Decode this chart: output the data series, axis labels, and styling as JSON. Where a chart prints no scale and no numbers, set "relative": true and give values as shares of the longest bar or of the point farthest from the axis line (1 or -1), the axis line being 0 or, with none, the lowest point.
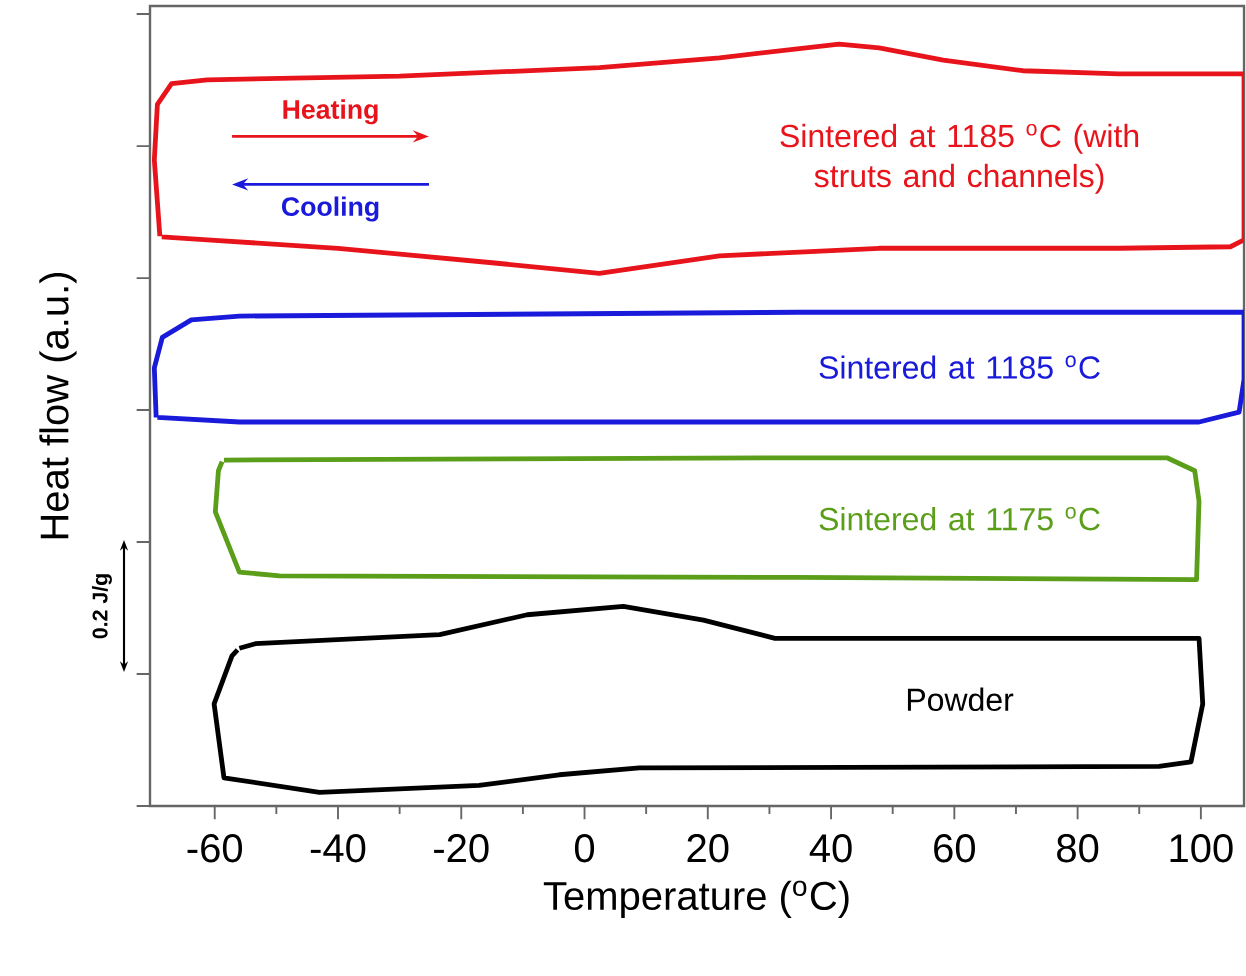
{
  "chart_data": {
    "type": "line",
    "relative": true,
    "xlabel": "Temperature ($^{o}$C)",
    "ylabel": "Heat flow (a.u.)",
    "xlim": [
      -70.5,
      107
    ],
    "xticks": [
      -60,
      -40,
      -20,
      0,
      20,
      40,
      60,
      80,
      100
    ],
    "tick_labels": "x",
    "annotations": [
      "Heating",
      "Cooling",
      "0.2 J/g"
    ],
    "series": [
      {
        "name": "Sintered at 1185 $^{o}$C (with struts and channels)",
        "color": "#e8141c",
        "x": [
          -68.9,
          -69.8,
          -69.3,
          -67.0,
          -61.2,
          -30.0,
          2.4,
          21.9,
          41.3,
          47.8,
          58.2,
          71.1,
          86.7,
          107,
          107,
          104.8,
          86.7,
          47.8,
          21.9,
          2.4,
          -15,
          -40,
          -61.2,
          -68.6
        ],
        "values": [
          0.748,
          0.848,
          0.921,
          0.948,
          0.953,
          0.958,
          0.969,
          0.982,
          1.0,
          0.995,
          0.979,
          0.965,
          0.961,
          0.961,
          0.743,
          0.734,
          0.732,
          0.732,
          0.722,
          0.699,
          0.713,
          0.732,
          0.743,
          0.747
        ]
      },
      {
        "name": "Sintered at 1185 $^{o}$C",
        "color": "#1a1adb",
        "x": [
          -69.5,
          -69.8,
          -68.5,
          -63.8,
          -56.0,
          34.8,
          107,
          107,
          106.2,
          99.7,
          30,
          -56,
          -69.3
        ],
        "values": [
          0.51,
          0.575,
          0.615,
          0.638,
          0.643,
          0.648,
          0.648,
          0.56,
          0.517,
          0.504,
          0.504,
          0.504,
          0.51
        ]
      },
      {
        "name": "Sintered at 1175 $^{o}$C",
        "color": "#5a9e1a",
        "x": [
          -58.5,
          34.8,
          94.5,
          99.0,
          99.7,
          99.3,
          34.8,
          -49.5,
          -56.0,
          -59.9,
          -59.4,
          -58.8
        ],
        "values": [
          0.454,
          0.457,
          0.457,
          0.44,
          0.4,
          0.297,
          0.3,
          0.302,
          0.307,
          0.386,
          0.44,
          0.452
        ]
      },
      {
        "name": "Powder",
        "color": "#000000",
        "x": [
          -56.0,
          -53.4,
          -23.5,
          -9.3,
          6.3,
          19.3,
          30.9,
          99.7,
          100.3,
          98.4,
          93.2,
          8.9,
          -4.1,
          -17.1,
          -43.0,
          -58.5,
          -60.1,
          -57.2,
          -56.3
        ],
        "values": [
          0.207,
          0.213,
          0.225,
          0.251,
          0.262,
          0.244,
          0.22,
          0.22,
          0.134,
          0.058,
          0.052,
          0.05,
          0.041,
          0.027,
          0.018,
          0.037,
          0.134,
          0.197,
          0.205
        ]
      }
    ]
  }
}
